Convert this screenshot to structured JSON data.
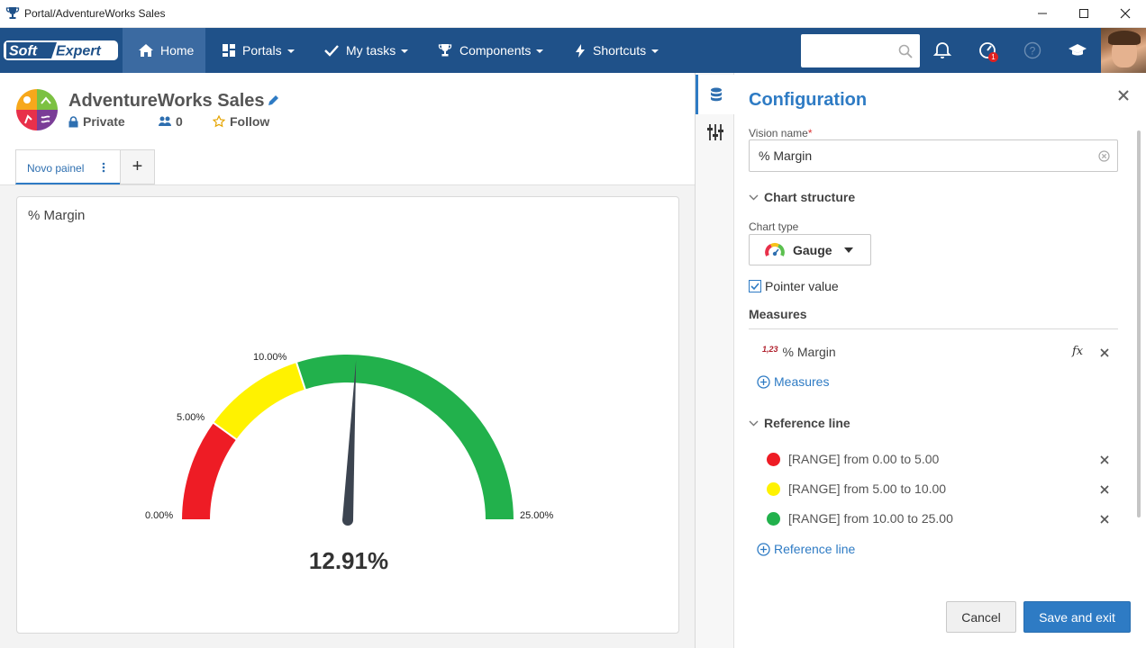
{
  "window": {
    "title": "Portal/AdventureWorks Sales"
  },
  "navbar": {
    "logo_text": "SoftExpert",
    "items": [
      {
        "label": "Home"
      },
      {
        "label": "Portals"
      },
      {
        "label": "My tasks"
      },
      {
        "label": "Components"
      },
      {
        "label": "Shortcuts"
      }
    ],
    "search_placeholder": "",
    "notification_badge": "1"
  },
  "portal": {
    "title": "AdventureWorks Sales",
    "privacy": "Private",
    "members_count": "0",
    "follow_label": "Follow",
    "tabs": [
      {
        "label": "Novo painel"
      }
    ],
    "add_tab_label": "+"
  },
  "widget": {
    "title": "% Margin",
    "value_label": "12.91%"
  },
  "chart_data": {
    "type": "gauge",
    "title": "% Margin",
    "min": 0,
    "max": 25,
    "value": 12.91,
    "value_label": "12.91%",
    "tick_labels": [
      "0.00%",
      "5.00%",
      "10.00%",
      "25.00%"
    ],
    "bands": [
      {
        "from": 0,
        "to": 5,
        "color": "#ee1c25"
      },
      {
        "from": 5,
        "to": 10,
        "color": "#fff200"
      },
      {
        "from": 10,
        "to": 25,
        "color": "#22b14c"
      }
    ]
  },
  "config": {
    "title": "Configuration",
    "vision_name_label": "Vision name",
    "required_mark": "*",
    "vision_name_value": "% Margin",
    "chart_structure_label": "Chart structure",
    "chart_type_label": "Chart type",
    "chart_type_value": "Gauge",
    "pointer_value_label": "Pointer value",
    "pointer_value_checked": true,
    "measures_title": "Measures",
    "measure_number_icon": "1,23",
    "measures": [
      {
        "label": "% Margin"
      }
    ],
    "fx_label": "fx",
    "add_measures_label": "Measures",
    "reference_line_title": "Reference line",
    "reference_lines": [
      {
        "label": "[RANGE] from 0.00 to 5.00",
        "color": "#ee1c25"
      },
      {
        "label": "[RANGE] from 5.00 to 10.00",
        "color": "#fff200"
      },
      {
        "label": "[RANGE] from 10.00 to 25.00",
        "color": "#22b14c"
      }
    ],
    "add_reference_line_label": "Reference line",
    "cancel_label": "Cancel",
    "save_label": "Save and exit"
  },
  "colors": {
    "nav_bg": "#1f5189",
    "accent": "#2e7bc4"
  }
}
